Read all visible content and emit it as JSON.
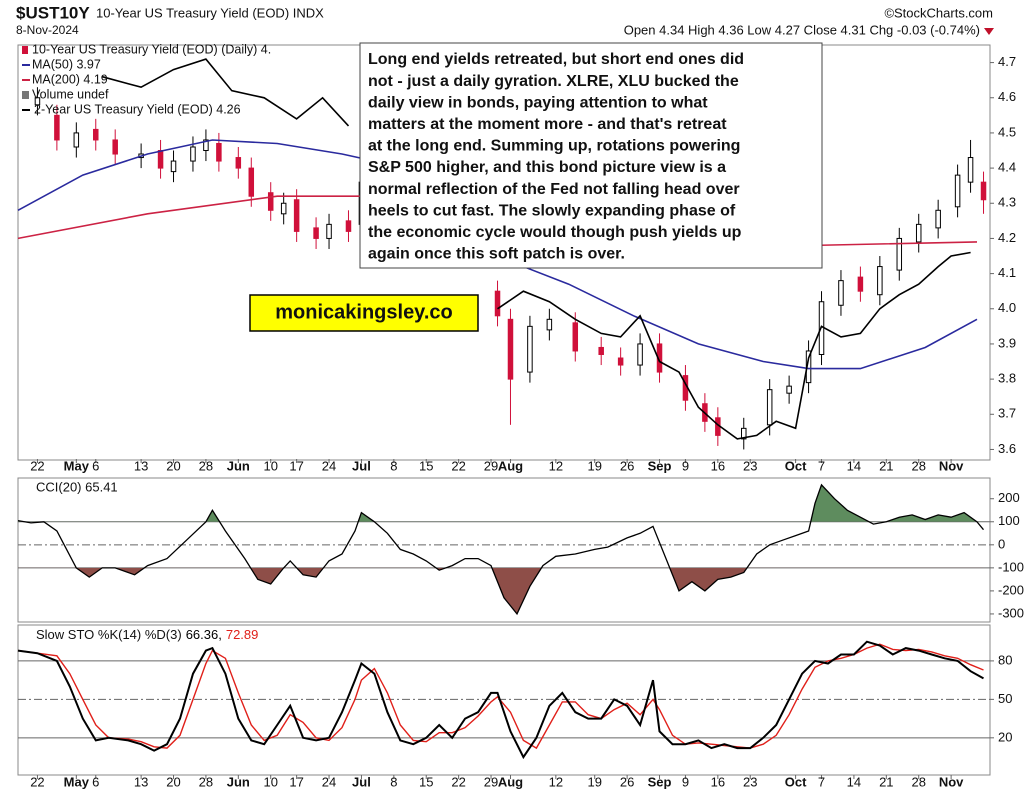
{
  "chart_data": [
    {
      "type": "candlestick",
      "title": "$UST10Y",
      "subtitle": "10-Year US Treasury Yield (EOD) INDX",
      "date": "8-Nov-2024",
      "source": "©StockCharts.com",
      "quote": "Open 4.34 High 4.36 Low 4.27 Close 4.31 Chg -0.03 (-0.74%)",
      "xlim": [
        0,
        150
      ],
      "xticks": [
        {
          "value": 3,
          "label": "22"
        },
        {
          "value": 9,
          "label": "May"
        },
        {
          "value": 12,
          "label": "6"
        },
        {
          "value": 19,
          "label": "13"
        },
        {
          "value": 24,
          "label": "20"
        },
        {
          "value": 29,
          "label": "28"
        },
        {
          "value": 34,
          "label": "Jun"
        },
        {
          "value": 39,
          "label": "10"
        },
        {
          "value": 43,
          "label": "17"
        },
        {
          "value": 48,
          "label": "24"
        },
        {
          "value": 53,
          "label": "Jul"
        },
        {
          "value": 58,
          "label": "8"
        },
        {
          "value": 63,
          "label": "15"
        },
        {
          "value": 68,
          "label": "22"
        },
        {
          "value": 73,
          "label": "29"
        },
        {
          "value": 76,
          "label": "Aug"
        },
        {
          "value": 83,
          "label": "12"
        },
        {
          "value": 89,
          "label": "19"
        },
        {
          "value": 94,
          "label": "26"
        },
        {
          "value": 99,
          "label": "Sep"
        },
        {
          "value": 103,
          "label": "9"
        },
        {
          "value": 108,
          "label": "16"
        },
        {
          "value": 113,
          "label": "23"
        },
        {
          "value": 120,
          "label": "Oct"
        },
        {
          "value": 124,
          "label": "7"
        },
        {
          "value": 129,
          "label": "14"
        },
        {
          "value": 134,
          "label": "21"
        },
        {
          "value": 139,
          "label": "28"
        },
        {
          "value": 144,
          "label": "Nov"
        }
      ],
      "ylim": [
        3.57,
        4.75
      ],
      "yticks": [
        3.6,
        3.7,
        3.8,
        3.9,
        {
          "value": 4,
          "label": "4.0"
        },
        4.1,
        4.2,
        4.3,
        4.4,
        4.5,
        4.6,
        4.7
      ],
      "candles": {
        "name": "10-Year US Treasury Yield (EOD) (Daily) 4.",
        "up_color": "#000000",
        "down_color": "#d0103a",
        "x": [
          3,
          6,
          9,
          12,
          15,
          19,
          22,
          24,
          27,
          29,
          31,
          34,
          36,
          39,
          41,
          43,
          46,
          48,
          51,
          53,
          74,
          76,
          79,
          82,
          86,
          90,
          93,
          96,
          99,
          103,
          106,
          108,
          112,
          116,
          119,
          122,
          124,
          127,
          130,
          133,
          136,
          139,
          142,
          145,
          147,
          149
        ],
        "open": [
          4.58,
          4.55,
          4.46,
          4.51,
          4.48,
          4.43,
          4.45,
          4.39,
          4.42,
          4.45,
          4.47,
          4.43,
          4.4,
          4.33,
          4.27,
          4.31,
          4.23,
          4.2,
          4.25,
          4.24,
          4.05,
          3.97,
          3.82,
          3.94,
          3.96,
          3.89,
          3.86,
          3.84,
          3.9,
          3.81,
          3.73,
          3.69,
          3.63,
          3.67,
          3.76,
          3.79,
          3.87,
          4.01,
          4.09,
          4.04,
          4.11,
          4.19,
          4.23,
          4.29,
          4.36,
          4.36
        ],
        "high": [
          4.63,
          4.58,
          4.53,
          4.54,
          4.51,
          4.47,
          4.48,
          4.45,
          4.49,
          4.51,
          4.5,
          4.46,
          4.43,
          4.36,
          4.33,
          4.34,
          4.26,
          4.27,
          4.28,
          4.39,
          4.08,
          4.0,
          3.98,
          4.0,
          3.99,
          3.92,
          3.89,
          3.93,
          3.93,
          3.84,
          3.76,
          3.72,
          3.69,
          3.8,
          3.81,
          3.91,
          4.05,
          4.11,
          4.12,
          4.15,
          4.23,
          4.27,
          4.31,
          4.41,
          4.48,
          4.39
        ],
        "low": [
          4.55,
          4.45,
          4.43,
          4.45,
          4.41,
          4.4,
          4.37,
          4.36,
          4.39,
          4.42,
          4.39,
          4.37,
          4.29,
          4.25,
          4.24,
          4.19,
          4.17,
          4.17,
          4.19,
          4.21,
          3.95,
          3.67,
          3.79,
          3.91,
          3.85,
          3.84,
          3.81,
          3.81,
          3.79,
          3.71,
          3.65,
          3.61,
          3.6,
          3.64,
          3.73,
          3.76,
          3.84,
          3.98,
          4.02,
          4.01,
          4.08,
          4.16,
          4.2,
          4.26,
          4.33,
          4.27
        ],
        "close": [
          4.6,
          4.48,
          4.5,
          4.48,
          4.44,
          4.44,
          4.4,
          4.42,
          4.46,
          4.48,
          4.42,
          4.4,
          4.32,
          4.28,
          4.3,
          4.22,
          4.2,
          4.24,
          4.22,
          4.36,
          3.98,
          3.8,
          3.95,
          3.97,
          3.88,
          3.87,
          3.84,
          3.9,
          3.82,
          3.74,
          3.68,
          3.64,
          3.66,
          3.77,
          3.78,
          3.88,
          4.02,
          4.08,
          4.05,
          4.12,
          4.2,
          4.24,
          4.28,
          4.38,
          4.43,
          4.31
        ]
      },
      "series": [
        {
          "name": "MA(50) 3.97",
          "color": "#2a2a9e",
          "x": [
            0,
            10,
            20,
            30,
            40,
            50,
            55,
            78,
            85,
            95,
            105,
            115,
            122,
            130,
            140,
            148
          ],
          "values": [
            4.28,
            4.38,
            4.44,
            4.48,
            4.47,
            4.44,
            4.42,
            4.12,
            4.07,
            3.98,
            3.9,
            3.85,
            3.83,
            3.83,
            3.89,
            3.97
          ]
        },
        {
          "name": "MA(200) 4.19",
          "color": "#cc2244",
          "x": [
            0,
            20,
            40,
            55,
            122,
            148
          ],
          "values": [
            4.2,
            4.27,
            4.32,
            4.32,
            4.18,
            4.19
          ]
        },
        {
          "name": "2-Year US Treasury Yield (EOD) 4.26",
          "color": "#000000",
          "x": [
            13,
            19,
            24,
            29,
            33,
            38,
            43,
            47,
            51,
            62,
            74,
            78,
            82,
            86,
            90,
            93,
            96,
            99,
            102,
            105,
            108,
            111,
            114,
            117,
            120,
            122,
            124,
            127,
            130,
            133,
            136,
            139,
            142,
            144,
            147
          ],
          "values": [
            4.66,
            4.63,
            4.68,
            4.71,
            4.62,
            4.6,
            4.54,
            4.6,
            4.52,
            null,
            4.0,
            4.05,
            4.02,
            3.97,
            3.93,
            3.92,
            3.98,
            3.85,
            3.82,
            3.72,
            3.67,
            3.63,
            3.64,
            3.68,
            3.66,
            3.86,
            3.95,
            3.92,
            3.93,
            4.0,
            4.04,
            4.07,
            4.12,
            4.15,
            4.16
          ]
        }
      ],
      "legend_extra": "Volume undef",
      "annotation": [
        "Long end yields retreated, but short end ones did",
        "not - just a daily gyration. XLRE, XLU bucked the",
        "daily view in bonds, paying attention to what",
        "matters at the moment more - and that's retreat",
        "at the long end. Summing up, rotations powering",
        "S&P 500 higher, and this bond picture view is a",
        "normal reflection of the Fed not falling head over",
        "heels to cut fast. The slowly expanding phase of",
        "the economic cycle would though push yields up",
        "again once this soft patch is over."
      ],
      "watermark": "monicakingsley.co"
    },
    {
      "type": "cci",
      "xlim": [
        0,
        150
      ],
      "ylim": [
        -335,
        290
      ],
      "yticks": [
        200,
        100,
        0,
        -100,
        -200,
        -300
      ],
      "reference_lines": [
        {
          "value": 100,
          "style": "solid"
        },
        {
          "value": 0,
          "style": "dashed"
        },
        {
          "value": -100,
          "style": "solid"
        }
      ],
      "fill_colors": {
        "above": "#5e8c5e",
        "below": "#8e4e48"
      },
      "series": [
        {
          "name": "CCI(20) 65.41",
          "color": "#000000",
          "x": [
            0,
            2,
            4,
            6,
            9,
            11,
            13,
            15,
            18,
            20,
            23,
            26,
            29,
            30,
            32,
            35,
            37,
            39,
            41,
            42,
            44,
            46,
            48,
            50,
            52,
            53,
            55,
            57,
            59,
            61,
            63,
            65,
            67,
            69,
            71,
            73,
            75,
            77,
            79,
            81,
            83,
            86,
            89,
            91,
            94,
            96,
            98,
            100,
            102,
            104,
            106,
            108,
            110,
            112,
            114,
            116,
            118,
            120,
            122,
            123,
            124,
            126,
            128,
            130,
            132,
            134,
            136,
            138,
            140,
            142,
            144,
            146,
            148,
            149
          ],
          "values": [
            105,
            95,
            100,
            60,
            -100,
            -140,
            -100,
            -100,
            -130,
            -90,
            -60,
            20,
            100,
            150,
            60,
            -60,
            -150,
            -170,
            -100,
            -70,
            -130,
            -140,
            -70,
            -40,
            60,
            140,
            100,
            50,
            -20,
            -40,
            -70,
            -110,
            -90,
            -60,
            -60,
            -90,
            -230,
            -300,
            -180,
            -90,
            -50,
            -40,
            -20,
            -10,
            30,
            50,
            80,
            -60,
            -200,
            -160,
            -200,
            -150,
            -140,
            -120,
            -40,
            0,
            20,
            40,
            60,
            180,
            260,
            200,
            150,
            120,
            90,
            100,
            120,
            130,
            110,
            130,
            120,
            140,
            100,
            65.41
          ]
        }
      ]
    },
    {
      "type": "line",
      "title": "Slow STO %K(14) %D(3)",
      "xlim": [
        0,
        150
      ],
      "ylim": [
        -9,
        108
      ],
      "yticks": [
        80,
        50,
        20
      ],
      "reference_lines": [
        {
          "value": 80,
          "style": "solid"
        },
        {
          "value": 50,
          "style": "dashed"
        },
        {
          "value": 20,
          "style": "solid"
        }
      ],
      "series": [
        {
          "name": "66.36,",
          "color": "#000000",
          "x": [
            0,
            3,
            6,
            8,
            10,
            12,
            14,
            17,
            19,
            21,
            23,
            25,
            27,
            29,
            30,
            32,
            34,
            36,
            38,
            40,
            42,
            44,
            46,
            48,
            50,
            52,
            53,
            55,
            57,
            59,
            61,
            63,
            65,
            67,
            69,
            71,
            73,
            74,
            76,
            78,
            80,
            82,
            84,
            86,
            88,
            90,
            92,
            94,
            96,
            98,
            99,
            101,
            103,
            105,
            107,
            109,
            111,
            113,
            115,
            117,
            119,
            121,
            123,
            125,
            127,
            129,
            131,
            133,
            135,
            137,
            139,
            141,
            143,
            145,
            147,
            149
          ],
          "values": [
            88,
            86,
            80,
            60,
            35,
            18,
            20,
            18,
            15,
            10,
            15,
            35,
            70,
            88,
            90,
            70,
            35,
            18,
            15,
            30,
            45,
            20,
            18,
            20,
            40,
            65,
            78,
            70,
            40,
            18,
            15,
            20,
            30,
            20,
            35,
            40,
            55,
            55,
            25,
            5,
            20,
            45,
            55,
            40,
            35,
            35,
            50,
            45,
            30,
            65,
            25,
            15,
            15,
            18,
            12,
            15,
            12,
            12,
            20,
            30,
            50,
            70,
            80,
            78,
            85,
            85,
            95,
            92,
            85,
            90,
            88,
            85,
            82,
            80,
            72,
            66.36
          ]
        },
        {
          "name": "72.89",
          "color": "#e0201a",
          "x": [
            0,
            3,
            6,
            8,
            10,
            12,
            14,
            17,
            19,
            21,
            23,
            25,
            27,
            29,
            30,
            32,
            34,
            36,
            38,
            40,
            42,
            44,
            46,
            48,
            50,
            52,
            53,
            55,
            57,
            59,
            61,
            63,
            65,
            67,
            69,
            71,
            73,
            74,
            76,
            78,
            80,
            82,
            84,
            86,
            88,
            90,
            92,
            94,
            96,
            98,
            99,
            101,
            103,
            105,
            107,
            109,
            111,
            113,
            115,
            117,
            119,
            121,
            123,
            125,
            127,
            129,
            131,
            133,
            135,
            137,
            139,
            141,
            143,
            145,
            147,
            149
          ],
          "values": [
            88,
            86,
            84,
            70,
            50,
            30,
            20,
            19,
            17,
            13,
            12,
            22,
            50,
            78,
            88,
            82,
            55,
            30,
            18,
            22,
            38,
            32,
            20,
            18,
            28,
            50,
            65,
            74,
            55,
            30,
            18,
            17,
            24,
            24,
            28,
            37,
            48,
            52,
            40,
            18,
            12,
            30,
            48,
            48,
            38,
            35,
            42,
            47,
            38,
            50,
            42,
            22,
            15,
            16,
            15,
            14,
            13,
            12,
            15,
            22,
            38,
            58,
            75,
            80,
            82,
            85,
            90,
            93,
            89,
            88,
            89,
            87,
            84,
            82,
            77,
            72.89
          ]
        }
      ]
    }
  ]
}
